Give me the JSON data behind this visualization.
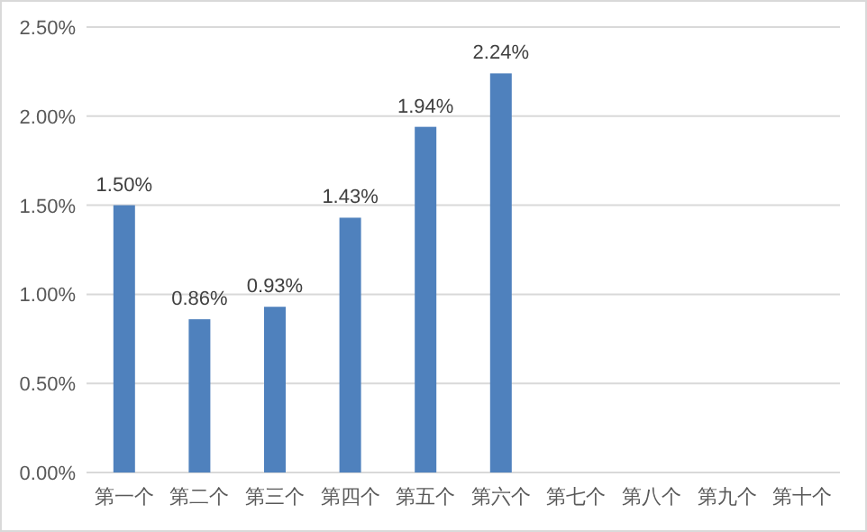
{
  "chart_data": {
    "type": "bar",
    "categories": [
      "第一个",
      "第二个",
      "第三个",
      "第四个",
      "第五个",
      "第六个",
      "第七个",
      "第八个",
      "第九个",
      "第十个"
    ],
    "series": [
      {
        "color": "#4f81bd",
        "values": [
          1.5,
          0.86,
          0.93,
          1.43,
          1.94,
          2.24,
          null,
          null,
          null,
          null
        ],
        "value_labels": [
          "1.50%",
          "0.86%",
          "0.93%",
          "1.43%",
          "1.94%",
          "2.24%",
          null,
          null,
          null,
          null
        ]
      }
    ],
    "ylim": [
      0,
      2.5
    ],
    "yticks": [
      {
        "value": 0,
        "label": "0.00%"
      },
      {
        "value": 0.5,
        "label": "0.50%"
      },
      {
        "value": 1,
        "label": "1.00%"
      },
      {
        "value": 1.5,
        "label": "1.50%"
      },
      {
        "value": 2,
        "label": "2.00%"
      },
      {
        "value": 2.5,
        "label": "2.50%"
      }
    ],
    "grid": "y"
  }
}
